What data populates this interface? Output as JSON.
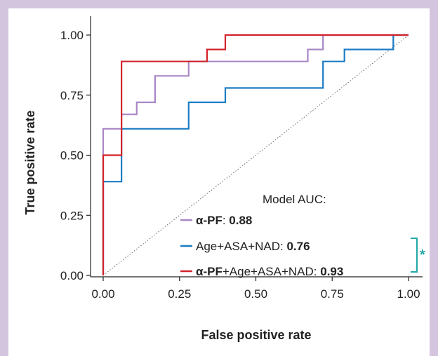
{
  "chart_data": {
    "type": "line",
    "xlabel": "False positive rate",
    "ylabel": "True positive rate",
    "xlim": [
      0,
      1
    ],
    "ylim": [
      0,
      1
    ],
    "xticks": [
      "0.00",
      "0.25",
      "0.50",
      "0.75",
      "1.00"
    ],
    "yticks": [
      "0.00",
      "0.25",
      "0.50",
      "0.75",
      "1.00"
    ],
    "grid": false,
    "legend_title": "Model AUC:",
    "legend_position": "bottom-right",
    "diagonal_reference": true,
    "series": [
      {
        "name": "α-PF",
        "auc": "0.88",
        "color": "#a987c6",
        "points": [
          [
            0,
            0
          ],
          [
            0,
            0.61
          ],
          [
            0.06,
            0.61
          ],
          [
            0.06,
            0.67
          ],
          [
            0.11,
            0.67
          ],
          [
            0.11,
            0.72
          ],
          [
            0.17,
            0.72
          ],
          [
            0.17,
            0.83
          ],
          [
            0.28,
            0.83
          ],
          [
            0.28,
            0.89
          ],
          [
            0.67,
            0.89
          ],
          [
            0.67,
            0.94
          ],
          [
            0.72,
            0.94
          ],
          [
            0.72,
            1.0
          ],
          [
            1.0,
            1.0
          ]
        ]
      },
      {
        "name": "Age+ASA+NAD",
        "auc": "0.76",
        "color": "#1b7cc3",
        "points": [
          [
            0,
            0
          ],
          [
            0,
            0.39
          ],
          [
            0.06,
            0.39
          ],
          [
            0.06,
            0.61
          ],
          [
            0.28,
            0.61
          ],
          [
            0.28,
            0.72
          ],
          [
            0.4,
            0.72
          ],
          [
            0.4,
            0.78
          ],
          [
            0.72,
            0.78
          ],
          [
            0.72,
            0.89
          ],
          [
            0.79,
            0.89
          ],
          [
            0.79,
            0.94
          ],
          [
            0.95,
            0.94
          ],
          [
            0.95,
            1.0
          ],
          [
            1.0,
            1.0
          ]
        ]
      },
      {
        "name": "α-PF+Age+ASA+NAD",
        "auc": "0.93",
        "color": "#d2232a",
        "points": [
          [
            0,
            0
          ],
          [
            0,
            0.5
          ],
          [
            0.06,
            0.5
          ],
          [
            0.06,
            0.89
          ],
          [
            0.34,
            0.89
          ],
          [
            0.34,
            0.94
          ],
          [
            0.4,
            0.94
          ],
          [
            0.4,
            1.0
          ],
          [
            1.0,
            1.0
          ]
        ]
      }
    ],
    "significance": {
      "label": "*",
      "color": "#22a7a7"
    }
  }
}
